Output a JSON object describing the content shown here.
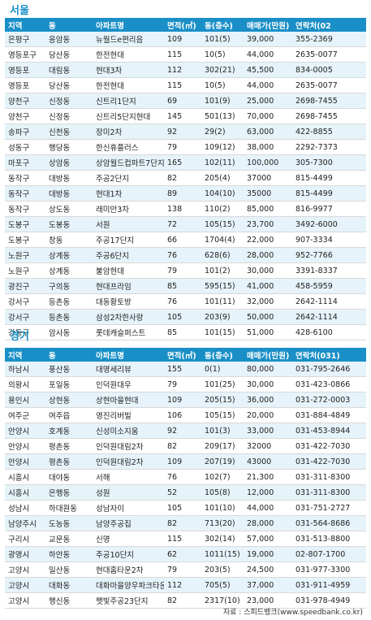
{
  "seoul": {
    "title": "서울",
    "headers": [
      "지역",
      "동",
      "아파트명",
      "면적(㎡)",
      "동(층수)",
      "매매가(만원)",
      "연락처(02"
    ],
    "rows": [
      [
        "은평구",
        "응암동",
        "뉴월드e편리음",
        "109",
        "101(5)",
        "39,000",
        "355-2369"
      ],
      [
        "영등포구",
        "당산동",
        "한전현대",
        "115",
        "10(5)",
        "44,000",
        "2635-0077"
      ],
      [
        "영등포",
        "대림동",
        "현대3차",
        "112",
        "302(21)",
        "45,500",
        "834-0005"
      ],
      [
        "영등포",
        "당산동",
        "한전현대",
        "115",
        "10(5)",
        "44,000",
        "2635-0077"
      ],
      [
        "양천구",
        "신정동",
        "신트리1단지",
        "69",
        "101(9)",
        "25,000",
        "2698-7455"
      ],
      [
        "양천구",
        "신정동",
        "신트리5단지현대",
        "145",
        "501(13)",
        "70,000",
        "2698-7455"
      ],
      [
        "송파구",
        "신천동",
        "장미2차",
        "92",
        "29(2)",
        "63,000",
        "422-8855"
      ],
      [
        "성동구",
        "행당동",
        "한신휴플러스",
        "79",
        "109(12)",
        "38,000",
        "2292-7373"
      ],
      [
        "마포구",
        "상암동",
        "상암월드컵파트7단지",
        "165",
        "102(11)",
        "100,000",
        "305-7300"
      ],
      [
        "동작구",
        "대방동",
        "주공2단지",
        "82",
        "205(4)",
        "37000",
        "815-4499"
      ],
      [
        "동작구",
        "대방동",
        "현대1차",
        "89",
        "104(10)",
        "35000",
        "815-4499"
      ],
      [
        "동작구",
        "상도동",
        "래미안3차",
        "138",
        "110(2)",
        "85,000",
        "816-9977"
      ],
      [
        "도봉구",
        "도봉동",
        "서원",
        "72",
        "105(15)",
        "23,700",
        "3492-6000"
      ],
      [
        "도봉구",
        "창동",
        "주공17단지",
        "66",
        "1704(4)",
        "22,000",
        "907-3334"
      ],
      [
        "노원구",
        "상계동",
        "주공6단지",
        "76",
        "628(6)",
        "28,000",
        "952-7766"
      ],
      [
        "노원구",
        "상계동",
        "불암현대",
        "79",
        "101(2)",
        "30,000",
        "3391-8337"
      ],
      [
        "광진구",
        "구의동",
        "현대프라임",
        "85",
        "595(15)",
        "41,000",
        "458-5959"
      ],
      [
        "강서구",
        "등촌동",
        "대동황토방",
        "76",
        "101(11)",
        "32,000",
        "2642-1114"
      ],
      [
        "강서구",
        "등촌동",
        "삼성2차한사랑",
        "105",
        "203(9)",
        "50,000",
        "2642-1114"
      ],
      [
        "강동구",
        "암사동",
        "롯데캐슬퍼스트",
        "85",
        "101(15)",
        "51,000",
        "428-6100"
      ]
    ]
  },
  "gyeonggi": {
    "title": "경기",
    "headers": [
      "지역",
      "동",
      "아파트명",
      "면적(㎡)",
      "동(층수)",
      "매매가(만원)",
      "연락처(031)"
    ],
    "rows": [
      [
        "하남시",
        "풍산동",
        "대명세리뷰",
        "155",
        "0(1)",
        "80,000",
        "031-795-2646"
      ],
      [
        "의왕시",
        "포일동",
        "인덕원대우",
        "79",
        "101(25)",
        "30,000",
        "031-423-0866"
      ],
      [
        "용인시",
        "상현동",
        "상현마을현대",
        "109",
        "205(15)",
        "36,000",
        "031-272-0003"
      ],
      [
        "여주군",
        "여주읍",
        "영진리버빌",
        "106",
        "105(15)",
        "20,000",
        "031-884-4849"
      ],
      [
        "안양시",
        "호계동",
        "신성미소지움",
        "92",
        "101(3)",
        "33,000",
        "031-453-8944"
      ],
      [
        "안양시",
        "평촌동",
        "인덕원대림2차",
        "82",
        "209(17)",
        "32000",
        "031-422-7030"
      ],
      [
        "안양시",
        "평촌동",
        "인덕원대림2차",
        "109",
        "207(19)",
        "43000",
        "031-422-7030"
      ],
      [
        "시흥시",
        "대야동",
        "서해",
        "76",
        "102(7)",
        "21,300",
        "031-311-8300"
      ],
      [
        "시흥시",
        "은행동",
        "성원",
        "52",
        "105(8)",
        "12,000",
        "031-311-8300"
      ],
      [
        "성남시",
        "하대원동",
        "성남자이",
        "105",
        "101(10)",
        "44,000",
        "031-751-2727"
      ],
      [
        "남양주시",
        "도농동",
        "남양주공집",
        "82",
        "713(20)",
        "28,000",
        "031-564-8686"
      ],
      [
        "구리시",
        "교문동",
        "신명",
        "115",
        "302(14)",
        "57,000",
        "031-513-8800"
      ],
      [
        "광명시",
        "하안동",
        "주공10단지",
        "62",
        "1011(15)",
        "19,000",
        "02-807-1700"
      ],
      [
        "고양시",
        "일산동",
        "현대홈타운2차",
        "79",
        "203(5)",
        "24,500",
        "031-977-3300"
      ],
      [
        "고양시",
        "대화동",
        "대화마을양우파크타운",
        "112",
        "705(5)",
        "37,000",
        "031-911-4959"
      ],
      [
        "고양시",
        "행신동",
        "햇빛주공23단지",
        "82",
        "2317(10)",
        "23,000",
        "031-978-4949"
      ]
    ]
  },
  "source": "자료 : 스피드뱅크(www.speedbank.co.kr)"
}
